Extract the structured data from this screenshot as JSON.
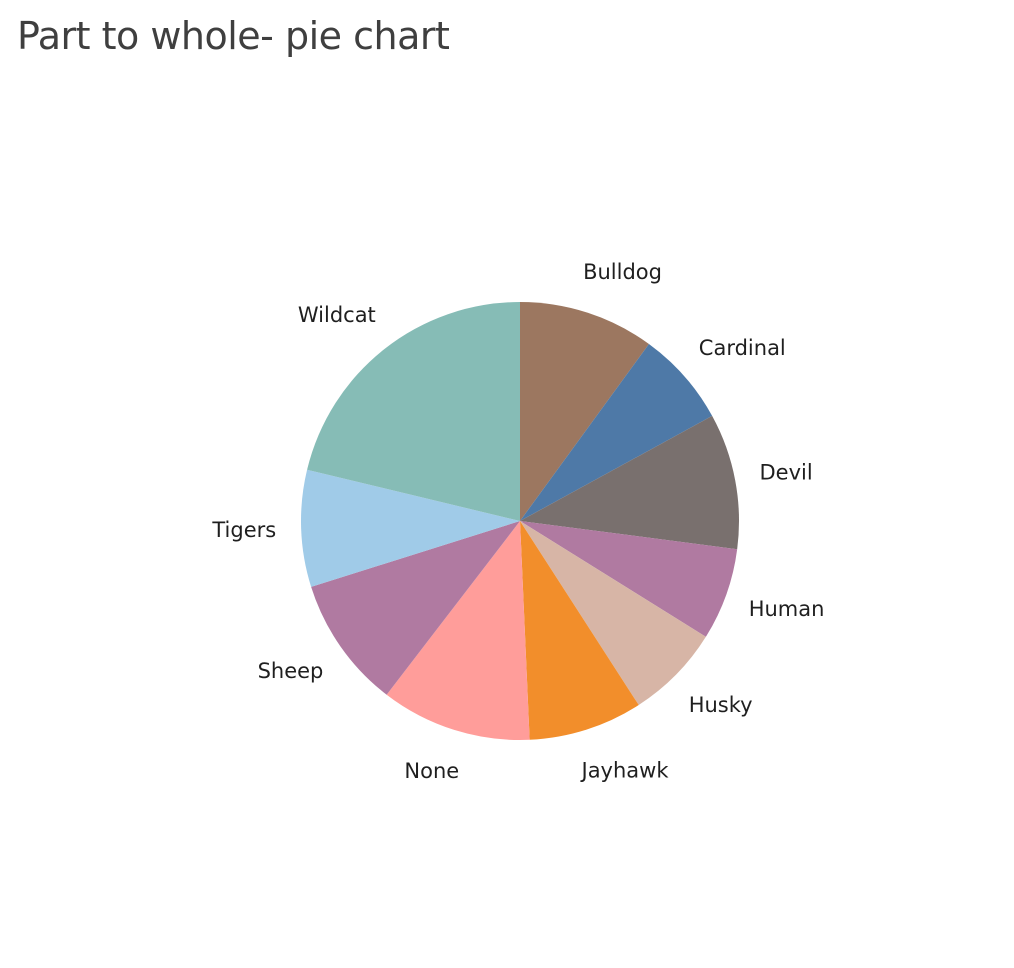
{
  "chart_data": {
    "type": "pie",
    "title": "Part to whole- pie chart",
    "start_angle_deg": 0,
    "direction": "clockwise",
    "slices": [
      {
        "label": "Bulldog",
        "value": 10.0,
        "color": "#9c7760"
      },
      {
        "label": "Cardinal",
        "value": 7.0,
        "color": "#4e79a7"
      },
      {
        "label": "Devil",
        "value": 10.0,
        "color": "#79706e"
      },
      {
        "label": "Human",
        "value": 6.8,
        "color": "#b07aa1"
      },
      {
        "label": "Husky",
        "value": 7.0,
        "color": "#d7b5a6"
      },
      {
        "label": "Jayhawk",
        "value": 8.4,
        "color": "#f28e2b"
      },
      {
        "label": "None",
        "value": 11.1,
        "color": "#ff9d9a"
      },
      {
        "label": "Sheep",
        "value": 9.7,
        "color": "#b07aa1"
      },
      {
        "label": "Tigers",
        "value": 8.6,
        "color": "#a0cbe8"
      },
      {
        "label": "Wildcat",
        "value": 21.2,
        "color": "#86bcb6"
      }
    ]
  }
}
